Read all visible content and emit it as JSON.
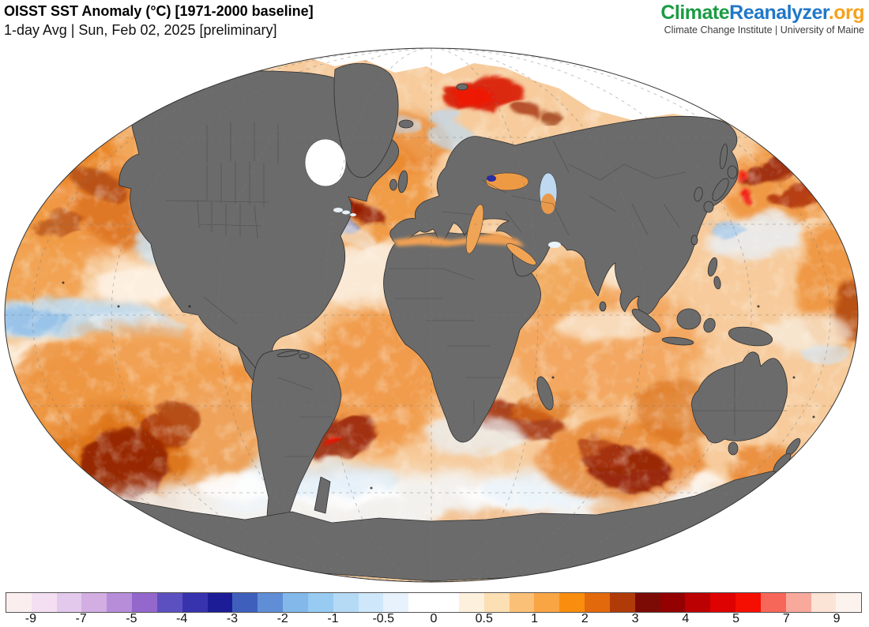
{
  "header": {
    "title": "OISST SST Anomaly (°C) [1971-2000 baseline]",
    "subtitle": "1-day Avg | Sun, Feb 02, 2025 [preliminary]"
  },
  "brand": {
    "name_part_climate": "Climate",
    "name_part_reanalyzer": "Reanalyzer",
    "name_part_org": ".org",
    "tagline": "Climate Change Institute | University of Maine",
    "color_climate": "#1a9c43",
    "color_reanalyzer": "#2077c8",
    "color_org": "#f6a21d",
    "color_tagline": "#3c3c3c"
  },
  "chart_data": {
    "type": "heatmap",
    "title": "OISST SST Anomaly (°C) [1971-2000 baseline]",
    "subtitle": "1-day Avg | Sun, Feb 02, 2025 [preliminary]",
    "units": "°C",
    "projection": "global elliptical (Winkel-style) world map",
    "colorbar": {
      "ticks": [
        -9,
        -7,
        -5,
        -4,
        -3,
        -2,
        -1,
        -0.5,
        0,
        0.5,
        1,
        2,
        3,
        4,
        5,
        7,
        9
      ],
      "tick_labels": [
        "-9",
        "-7",
        "-5",
        "-4",
        "-3",
        "-2",
        "-1",
        "-0.5",
        "0",
        "0.5",
        "1",
        "2",
        "3",
        "4",
        "5",
        "7",
        "9"
      ],
      "segments_per_tick_interval": 2,
      "segment_colors": [
        "#fbeeee",
        "#f3dff1",
        "#e3c9eb",
        "#d3aee3",
        "#b78dda",
        "#9367cc",
        "#5c50c0",
        "#3732ae",
        "#1c1d96",
        "#3e60bc",
        "#608ed6",
        "#82b9ea",
        "#98cbf2",
        "#b5daf6",
        "#cfe7fa",
        "#e7f2fc",
        "#ffffff",
        "#ffffff",
        "#fdf0dc",
        "#fcdfb2",
        "#fbc077",
        "#faa544",
        "#f98d0d",
        "#e2690c",
        "#b13a09",
        "#7c0b06",
        "#930101",
        "#bb0101",
        "#de0202",
        "#f50f02",
        "#f6675a",
        "#f8a99c",
        "#fbe3d6",
        "#fdf3ee"
      ],
      "border_color": "#555555"
    },
    "notable_features": [
      {
        "region": "Equatorial eastern Pacific (La Niña cool tongue, left edge)",
        "anomaly_c": "-0.5 to -2"
      },
      {
        "region": "Central South Pacific blob",
        "anomaly_c": "+3 to +5"
      },
      {
        "region": "Barents Sea north of Scandinavia",
        "anomaly_c": "+4 to +5"
      },
      {
        "region": "Kuroshio region east of Japan",
        "anomaly_c": "+3 to +5 with spots > +5"
      },
      {
        "region": "Gulf Stream off US East Coast",
        "anomaly_c": "mixed -4 to +4 swirls"
      },
      {
        "region": "Southwest Atlantic (Brazil-Malvinas confluence)",
        "anomaly_c": "+3 to +5"
      },
      {
        "region": "Agulhas region south of Africa",
        "anomaly_c": "+3 to +4"
      },
      {
        "region": "Most of global ocean",
        "anomaly_c": "+0.5 to +2"
      },
      {
        "region": "Arctic, Hudson Bay, Antarctic fringe",
        "anomaly_c": "sea ice / no data (white)"
      }
    ]
  },
  "map": {
    "land_color": "#6b6b6b",
    "coast_color": "#2f2f2f",
    "border_color": "#454545",
    "ice_color": "#ffffff",
    "ocean_base": "#f7cb9b",
    "graticule_color": "#7a7a7a",
    "outline_color": "#333333",
    "blob_format": "[cx, cy, rx, ry, rotation_deg, fill, opacity, blur(s|m|l), layer]",
    "blobs": [
      [
        95,
        165,
        130,
        95,
        0,
        "#ef9240",
        0.9,
        "l",
        1
      ],
      [
        55,
        115,
        95,
        55,
        0,
        "#e8801f",
        0.75,
        "m",
        1
      ],
      [
        160,
        205,
        75,
        48,
        20,
        "#d86c12",
        0.7,
        "m",
        1
      ],
      [
        40,
        265,
        65,
        75,
        0,
        "#f09a42",
        0.8,
        "m",
        1
      ],
      [
        200,
        115,
        65,
        38,
        0,
        "#f2ab5e",
        0.7,
        "m",
        1
      ],
      [
        120,
        170,
        42,
        16,
        25,
        "#a63d08",
        0.65,
        "s",
        1
      ],
      [
        70,
        222,
        32,
        13,
        -15,
        "#a63d08",
        0.6,
        "s",
        1
      ],
      [
        210,
        250,
        42,
        26,
        0,
        "#cce4f6",
        0.85,
        "m",
        1
      ],
      [
        165,
        298,
        52,
        26,
        0,
        "#fef8f0",
        0.8,
        "m",
        1
      ],
      [
        82,
        342,
        125,
        25,
        0,
        "#bcdcf4",
        0.9,
        "m",
        1
      ],
      [
        28,
        344,
        60,
        16,
        0,
        "#8fbee8",
        0.8,
        "s",
        1
      ],
      [
        172,
        350,
        62,
        15,
        5,
        "#d8ebfa",
        0.8,
        "s",
        1
      ],
      [
        140,
        388,
        145,
        26,
        0,
        "#fdf5ea",
        0.8,
        "m",
        1
      ],
      [
        255,
        495,
        85,
        75,
        0,
        "#edf5fc",
        0.9,
        "l",
        1
      ],
      [
        305,
        545,
        65,
        42,
        0,
        "#d7e9f8",
        0.7,
        "m",
        1
      ],
      [
        170,
        475,
        165,
        125,
        0,
        "#f0953c",
        0.85,
        "l",
        1
      ],
      [
        140,
        530,
        95,
        85,
        0,
        "#d96c10",
        0.8,
        "m",
        1
      ],
      [
        152,
        528,
        58,
        46,
        -20,
        "#8c1a04",
        0.85,
        "s",
        1
      ],
      [
        208,
        478,
        42,
        26,
        -30,
        "#9e2b06",
        0.7,
        "s",
        1
      ],
      [
        108,
        585,
        52,
        30,
        20,
        "#b54508",
        0.7,
        "s",
        1
      ],
      [
        78,
        430,
        72,
        60,
        0,
        "#ed9440",
        0.8,
        "m",
        1
      ],
      [
        546,
        578,
        430,
        42,
        0,
        "#f2f8fd",
        0.85,
        "l",
        1
      ],
      [
        430,
        560,
        70,
        20,
        0,
        "#ffffff",
        0.9,
        "m",
        1
      ],
      [
        300,
        555,
        55,
        16,
        0,
        "#ffffff",
        0.8,
        "m",
        1
      ],
      [
        660,
        565,
        80,
        16,
        0,
        "#ffffff",
        0.8,
        "m",
        1
      ],
      [
        850,
        545,
        60,
        16,
        0,
        "#ffffff",
        0.7,
        "m",
        1
      ],
      [
        415,
        545,
        85,
        24,
        0,
        "#d9eaf8",
        0.65,
        "m",
        1
      ],
      [
        700,
        558,
        95,
        24,
        0,
        "#e4f0fa",
        0.65,
        "m",
        1
      ],
      [
        620,
        600,
        85,
        16,
        0,
        "#f2a45c",
        0.6,
        "m",
        1
      ],
      [
        806,
        585,
        62,
        15,
        0,
        "#efa156",
        0.6,
        "m",
        1
      ],
      [
        445,
        178,
        95,
        72,
        0,
        "#ef9338",
        0.85,
        "m",
        1
      ],
      [
        502,
        118,
        62,
        40,
        0,
        "#e8832a",
        0.7,
        "m",
        1
      ],
      [
        470,
        290,
        75,
        42,
        0,
        "#fbf3e8",
        0.75,
        "m",
        1
      ],
      [
        470,
        418,
        85,
        95,
        0,
        "#f09540",
        0.85,
        "l",
        1
      ],
      [
        445,
        130,
        32,
        18,
        0,
        "#ddebf8",
        0.75,
        "m",
        1
      ],
      [
        505,
        95,
        22,
        10,
        0,
        "#bfd9f2",
        0.6,
        "s",
        1
      ],
      [
        340,
        412,
        48,
        22,
        0,
        "#ee9038",
        0.8,
        "m",
        1
      ],
      [
        330,
        406,
        16,
        9,
        0,
        "#9c1404",
        0.85,
        "s",
        1
      ],
      [
        400,
        193,
        58,
        15,
        15,
        "#9e1c05",
        0.85,
        "s",
        1
      ],
      [
        447,
        204,
        42,
        12,
        20,
        "#8c1204",
        0.8,
        "s",
        1
      ],
      [
        406,
        214,
        46,
        11,
        18,
        "#5f7bd0",
        0.8,
        "s",
        1
      ],
      [
        381,
        204,
        26,
        9,
        10,
        "#3a3fb0",
        0.7,
        "s",
        1
      ],
      [
        373,
        207,
        12,
        6,
        15,
        "#7c52c8",
        0.8,
        "s",
        1
      ],
      [
        424,
        229,
        50,
        13,
        20,
        "#f3efe8",
        0.6,
        "s",
        1
      ],
      [
        428,
        492,
        46,
        25,
        -25,
        "#8e1505",
        0.8,
        "s",
        1
      ],
      [
        419,
        498,
        11,
        6,
        -20,
        "#e51205",
        0.9,
        "s",
        1
      ],
      [
        640,
        468,
        72,
        20,
        10,
        "#992005",
        0.8,
        "s",
        1
      ],
      [
        598,
        490,
        62,
        24,
        0,
        "#e9f2fa",
        0.7,
        "m",
        1
      ],
      [
        692,
        453,
        52,
        17,
        -10,
        "#d96a10",
        0.7,
        "s",
        1
      ],
      [
        762,
        378,
        125,
        82,
        0,
        "#f2a155",
        0.85,
        "l",
        1
      ],
      [
        712,
        298,
        52,
        36,
        0,
        "#f0a452",
        0.8,
        "m",
        1
      ],
      [
        790,
        288,
        32,
        24,
        0,
        "#fbf0e0",
        0.7,
        "m",
        1
      ],
      [
        758,
        350,
        62,
        20,
        0,
        "#faf0e2",
        0.7,
        "m",
        1
      ],
      [
        782,
        520,
        105,
        52,
        0,
        "#e8822b",
        0.8,
        "m",
        1
      ],
      [
        792,
        532,
        56,
        28,
        10,
        "#8c1505",
        0.85,
        "s",
        1
      ],
      [
        758,
        512,
        32,
        18,
        25,
        "#a93407",
        0.7,
        "s",
        1
      ],
      [
        852,
        458,
        52,
        40,
        0,
        "#d96e14",
        0.65,
        "m",
        1
      ],
      [
        968,
        538,
        48,
        36,
        0,
        "#e8832b",
        0.8,
        "m",
        1
      ],
      [
        952,
        560,
        26,
        12,
        20,
        "#a93808",
        0.7,
        "s",
        1
      ],
      [
        992,
        168,
        85,
        52,
        -15,
        "#ef9137",
        0.85,
        "m",
        1
      ],
      [
        975,
        152,
        46,
        13,
        -20,
        "#8e1505",
        0.8,
        "s",
        1
      ],
      [
        1012,
        184,
        42,
        12,
        -15,
        "#a32206",
        0.75,
        "s",
        1
      ],
      [
        952,
        238,
        62,
        26,
        -10,
        "#e8f1fa",
        0.8,
        "m",
        1
      ],
      [
        916,
        228,
        22,
        10,
        0,
        "#9cc6ee",
        0.7,
        "s",
        1
      ],
      [
        934,
        160,
        6,
        9,
        -15,
        "#f21807",
        0.95,
        "s",
        1
      ],
      [
        941,
        186,
        6,
        9,
        -10,
        "#f21807",
        0.95,
        "s",
        1
      ],
      [
        1056,
        300,
        52,
        85,
        0,
        "#ee9035",
        0.85,
        "m",
        1
      ],
      [
        1076,
        332,
        26,
        38,
        0,
        "#a33006",
        0.7,
        "m",
        1
      ],
      [
        1022,
        360,
        52,
        26,
        0,
        "#f7efe3",
        0.7,
        "m",
        1
      ],
      [
        1042,
        386,
        32,
        12,
        0,
        "#cfe5f7",
        0.6,
        "s",
        1
      ],
      [
        566,
        110,
        32,
        16,
        10,
        "#bfdcf3",
        0.7,
        "s",
        1
      ],
      [
        608,
        58,
        50,
        20,
        -8,
        "#d81604",
        0.9,
        "s",
        2
      ],
      [
        596,
        62,
        22,
        12,
        -8,
        "#f01804",
        0.9,
        "s",
        2
      ],
      [
        662,
        76,
        18,
        10,
        10,
        "#a63007",
        0.8,
        "s",
        2
      ],
      [
        692,
        86,
        14,
        8,
        0,
        "#8e2505",
        0.7,
        "s",
        2
      ],
      [
        560,
        86,
        24,
        10,
        5,
        "#bcd8f2",
        0.7,
        "s",
        2
      ]
    ]
  }
}
